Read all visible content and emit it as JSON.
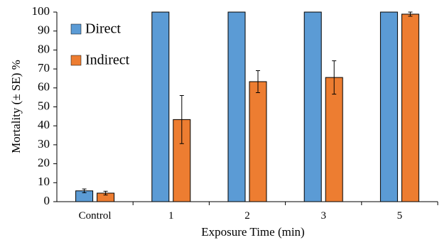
{
  "chart_data": {
    "type": "bar",
    "title": "",
    "xlabel": "Exposure Time (min)",
    "ylabel": "Mortality (± SE) %",
    "categories": [
      "Control",
      "1",
      "2",
      "3",
      "5"
    ],
    "ylim": [
      0,
      100
    ],
    "yticks": [
      0,
      10,
      20,
      30,
      40,
      50,
      60,
      70,
      80,
      90,
      100
    ],
    "grid": false,
    "legend_position": "top-left",
    "series": [
      {
        "name": "Direct",
        "color": "#5B9BD5",
        "values": [
          5.7,
          100,
          100,
          100,
          100
        ],
        "errors": [
          1.0,
          0,
          0,
          0,
          0
        ]
      },
      {
        "name": "Indirect",
        "color": "#ED7D31",
        "values": [
          4.5,
          43.3,
          63.3,
          65.5,
          98.9
        ],
        "errors": [
          1.0,
          12.7,
          5.8,
          8.8,
          1.1
        ]
      }
    ]
  }
}
